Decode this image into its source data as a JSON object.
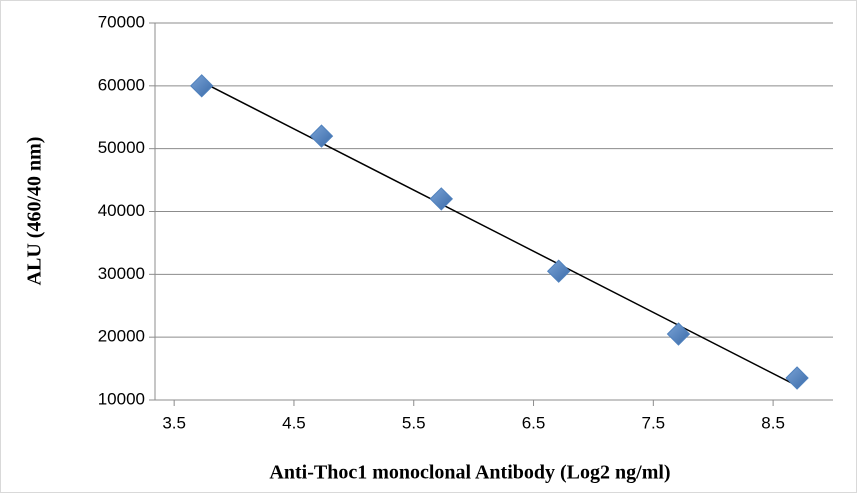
{
  "chart_data": {
    "type": "scatter",
    "x_label": "Anti-Thoc1 monoclonal Antibody (Log2 ng/ml)",
    "y_label": "ALU (460/40 nm)",
    "x": [
      3.73,
      4.73,
      5.73,
      6.71,
      7.71,
      8.7
    ],
    "values": [
      60000,
      52000,
      42000,
      30500,
      20500,
      13500
    ],
    "color": "#4f81bd",
    "trendline": "linear",
    "xlim": [
      3.34,
      9.0
    ],
    "xticks": [
      3.5,
      4.5,
      5.5,
      6.5,
      7.5,
      8.5
    ],
    "ylim": [
      10000,
      70000
    ],
    "yticks": [
      10000,
      20000,
      30000,
      40000,
      50000,
      60000,
      70000
    ],
    "grid": true
  }
}
